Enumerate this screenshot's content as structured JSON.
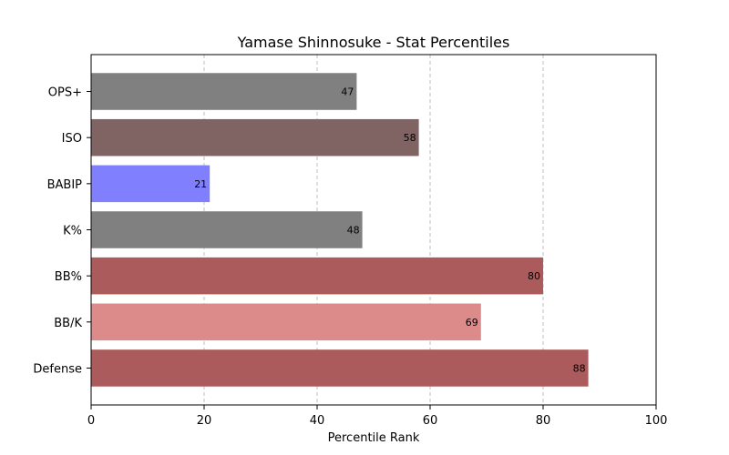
{
  "chart_data": {
    "type": "bar",
    "orientation": "horizontal",
    "title": "Yamase Shinnosuke - Stat Percentiles",
    "xlabel": "Percentile Rank",
    "ylabel": "",
    "xlim": [
      0,
      100
    ],
    "xticks": [
      "0",
      "20",
      "40",
      "60",
      "80",
      "100"
    ],
    "grid": "vertical dashed",
    "categories": [
      "OPS+",
      "ISO",
      "BABIP",
      "K%",
      "BB%",
      "BB/K",
      "Defense"
    ],
    "values": [
      47,
      58,
      21,
      48,
      80,
      69,
      88
    ],
    "value_labels": [
      "47",
      "58",
      "21",
      "48",
      "80",
      "69",
      "88"
    ],
    "colors": [
      "#808080",
      "#806464",
      "#8080ff",
      "#808080",
      "#ab5b5b",
      "#dc8a8a",
      "#ab5b5b"
    ]
  }
}
